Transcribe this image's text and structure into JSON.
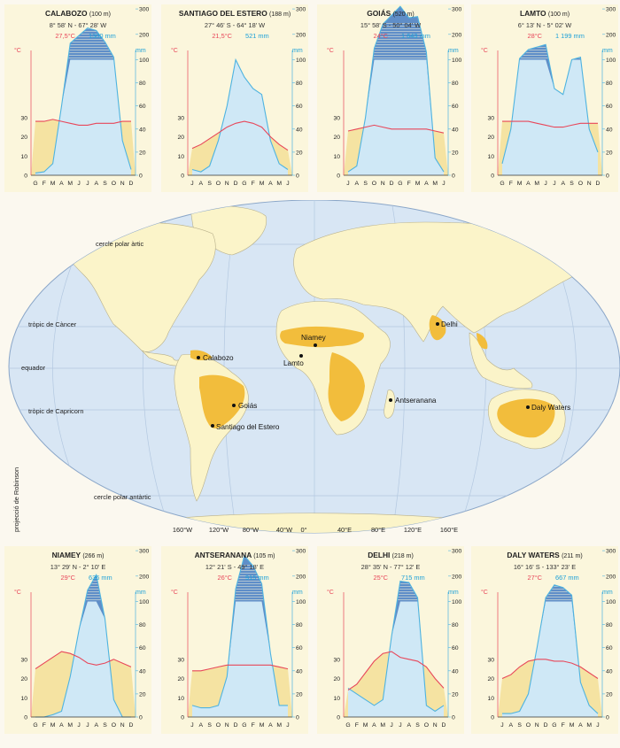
{
  "units": {
    "temp": "°C",
    "precip": "mm"
  },
  "colors": {
    "temp_line": "#e8475a",
    "precip_line": "#4eb3e0",
    "precip_fill": "#cfe8f6",
    "surplus_fill": "#5f8ec8",
    "dry_fill": "#f5e3a2",
    "panel_bg": "#fbf6dc",
    "savanna": "#f2bd3c",
    "ocean": "#d8e6f4",
    "land": "#fbf4c9"
  },
  "chart_data": [
    {
      "type": "line",
      "name": "CALABOZO",
      "alt": "(100 m)",
      "coords": "8° 58' N - 67° 28' W",
      "temp": "27,5°C",
      "precip": "1300 mm",
      "categories": [
        "G",
        "F",
        "M",
        "A",
        "M",
        "J",
        "J",
        "A",
        "S",
        "O",
        "N",
        "D"
      ],
      "temperature": [
        28,
        28,
        29,
        28,
        27,
        26,
        26,
        27,
        27,
        27,
        28,
        28
      ],
      "precipitation": [
        2,
        3,
        10,
        60,
        165,
        195,
        225,
        215,
        170,
        110,
        30,
        5
      ],
      "ylim_temp": [
        0,
        60
      ],
      "ylim_precip": [
        0,
        300
      ]
    },
    {
      "type": "line",
      "name": "SANTIAGO DEL ESTERO",
      "alt": "(188 m)",
      "coords": "27° 46' S - 64° 18' W",
      "temp": "21,5°C",
      "precip": "521 mm",
      "categories": [
        "J",
        "A",
        "S",
        "O",
        "N",
        "D",
        "G",
        "F",
        "M",
        "A",
        "M",
        "J"
      ],
      "temperature": [
        14,
        16,
        19,
        22,
        25,
        27,
        28,
        27,
        25,
        20,
        16,
        13
      ],
      "precipitation": [
        5,
        3,
        8,
        30,
        60,
        100,
        85,
        75,
        70,
        30,
        10,
        5
      ],
      "ylim_temp": [
        0,
        60
      ],
      "ylim_precip": [
        0,
        300
      ]
    },
    {
      "type": "line",
      "name": "GOIÁS",
      "alt": "(520 m)",
      "coords": "15° 58' S - 50° 04' W",
      "temp": "24°C",
      "precip": "1 643 mm",
      "categories": [
        "J",
        "A",
        "S",
        "O",
        "N",
        "D",
        "G",
        "F",
        "M",
        "A",
        "M",
        "J"
      ],
      "temperature": [
        23,
        24,
        25,
        26,
        25,
        24,
        24,
        24,
        24,
        24,
        23,
        22
      ],
      "precipitation": [
        3,
        8,
        50,
        145,
        240,
        275,
        310,
        265,
        270,
        130,
        15,
        3
      ],
      "ylim_temp": [
        0,
        60
      ],
      "ylim_precip": [
        0,
        300
      ]
    },
    {
      "type": "line",
      "name": "LAMTO",
      "alt": "(100 m)",
      "coords": "6° 13' N - 5° 02' W",
      "temp": "28°C",
      "precip": "1 199 mm",
      "categories": [
        "G",
        "F",
        "M",
        "A",
        "M",
        "J",
        "J",
        "A",
        "S",
        "O",
        "N",
        "D"
      ],
      "temperature": [
        28,
        28,
        28,
        28,
        27,
        26,
        25,
        25,
        26,
        27,
        27,
        27
      ],
      "precipitation": [
        10,
        40,
        105,
        140,
        150,
        160,
        75,
        70,
        100,
        110,
        40,
        20
      ],
      "ylim_temp": [
        0,
        60
      ],
      "ylim_precip": [
        0,
        300
      ]
    },
    {
      "type": "line",
      "name": "NIAMEY",
      "alt": "(266 m)",
      "coords": "13° 29' N - 2° 10' E",
      "temp": "29°C",
      "precip": "636 mm",
      "categories": [
        "G",
        "F",
        "M",
        "A",
        "M",
        "J",
        "J",
        "A",
        "S",
        "O",
        "N",
        "D"
      ],
      "temperature": [
        25,
        28,
        31,
        34,
        33,
        31,
        28,
        27,
        28,
        30,
        28,
        26
      ],
      "precipitation": [
        0,
        0,
        2,
        5,
        35,
        75,
        145,
        205,
        85,
        15,
        0,
        0
      ],
      "ylim_temp": [
        0,
        60
      ],
      "ylim_precip": [
        0,
        300
      ]
    },
    {
      "type": "line",
      "name": "ANTSERANANA",
      "alt": "(105 m)",
      "coords": "12° 21' S - 49° 18' E",
      "temp": "26°C",
      "precip": "915 mm",
      "categories": [
        "J",
        "A",
        "S",
        "O",
        "N",
        "D",
        "G",
        "F",
        "M",
        "A",
        "M",
        "J"
      ],
      "temperature": [
        24,
        24,
        25,
        26,
        27,
        27,
        27,
        27,
        27,
        27,
        26,
        25
      ],
      "precipitation": [
        10,
        8,
        8,
        10,
        35,
        150,
        280,
        240,
        170,
        55,
        10,
        10
      ],
      "ylim_temp": [
        0,
        60
      ],
      "ylim_precip": [
        0,
        300
      ]
    },
    {
      "type": "line",
      "name": "DELHI",
      "alt": "(218 m)",
      "coords": "28° 35' N - 77° 12' E",
      "temp": "25°C",
      "precip": "715 mm",
      "categories": [
        "G",
        "F",
        "M",
        "A",
        "M",
        "J",
        "J",
        "A",
        "S",
        "O",
        "N",
        "D"
      ],
      "temperature": [
        14,
        17,
        23,
        29,
        33,
        34,
        31,
        30,
        29,
        26,
        20,
        15
      ],
      "precipitation": [
        25,
        20,
        15,
        10,
        15,
        70,
        180,
        175,
        115,
        10,
        5,
        10
      ],
      "ylim_temp": [
        0,
        60
      ],
      "ylim_precip": [
        0,
        300
      ]
    },
    {
      "type": "line",
      "name": "DALY WATERS",
      "alt": "(211 m)",
      "coords": "16° 16' S - 133° 23' E",
      "temp": "27°C",
      "precip": "667 mm",
      "categories": [
        "J",
        "A",
        "S",
        "O",
        "N",
        "D",
        "G",
        "F",
        "M",
        "A",
        "M",
        "J"
      ],
      "temperature": [
        20,
        22,
        26,
        29,
        30,
        30,
        29,
        29,
        28,
        26,
        23,
        20
      ],
      "precipitation": [
        3,
        3,
        5,
        20,
        60,
        115,
        165,
        155,
        125,
        30,
        10,
        3
      ],
      "ylim_temp": [
        0,
        60
      ],
      "ylim_precip": [
        0,
        300
      ]
    }
  ],
  "map": {
    "parallels": [
      "cercle polar àrtic",
      "tròpic de Càncer",
      "equador",
      "tròpic de Capricorn",
      "cercle polar antàrtic"
    ],
    "projection": "projecció de Robinson",
    "longitudes": [
      "160°W",
      "120°W",
      "80°W",
      "40°W",
      "0°",
      "40°E",
      "80°E",
      "120°E",
      "160°E"
    ],
    "stations": [
      "Calabozo",
      "Goiás",
      "Santiago del Estero",
      "Niamey",
      "Lamto",
      "Antseranana",
      "Delhi",
      "Daly Waters"
    ]
  }
}
